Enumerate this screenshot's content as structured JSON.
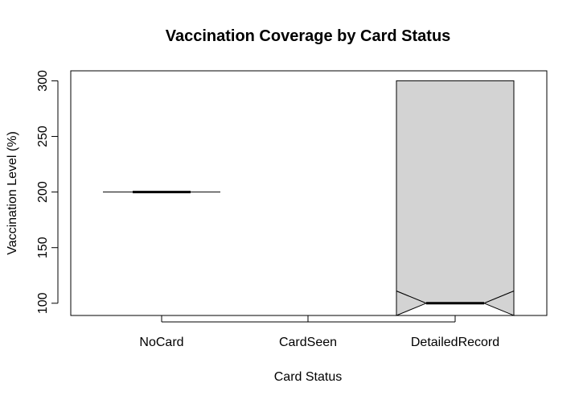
{
  "chart_data": {
    "type": "boxplot",
    "title": "Vaccination Coverage by Card Status",
    "xlabel": "Card Status",
    "ylabel": "Vaccination Level (%)",
    "categories": [
      "NoCard",
      "CardSeen",
      "DetailedRecord"
    ],
    "ylim": [
      89,
      309
    ],
    "yticks": [
      100,
      150,
      200,
      250,
      300
    ],
    "notch": true,
    "fill_color": "#d3d3d3",
    "line_color": "#000000",
    "boxes": [
      {
        "category": "NoCard",
        "min": 200,
        "q1": 200,
        "median": 200,
        "q3": 200,
        "max": 200,
        "notch_low": 200,
        "notch_high": 200
      },
      {
        "category": "CardSeen",
        "min": null,
        "q1": null,
        "median": null,
        "q3": null,
        "max": null,
        "notch_low": null,
        "notch_high": null
      },
      {
        "category": "DetailedRecord",
        "min": 100,
        "q1": 100,
        "median": 100,
        "q3": 300,
        "max": 300,
        "notch_low": 89,
        "notch_high": 111
      }
    ],
    "grid": false
  }
}
